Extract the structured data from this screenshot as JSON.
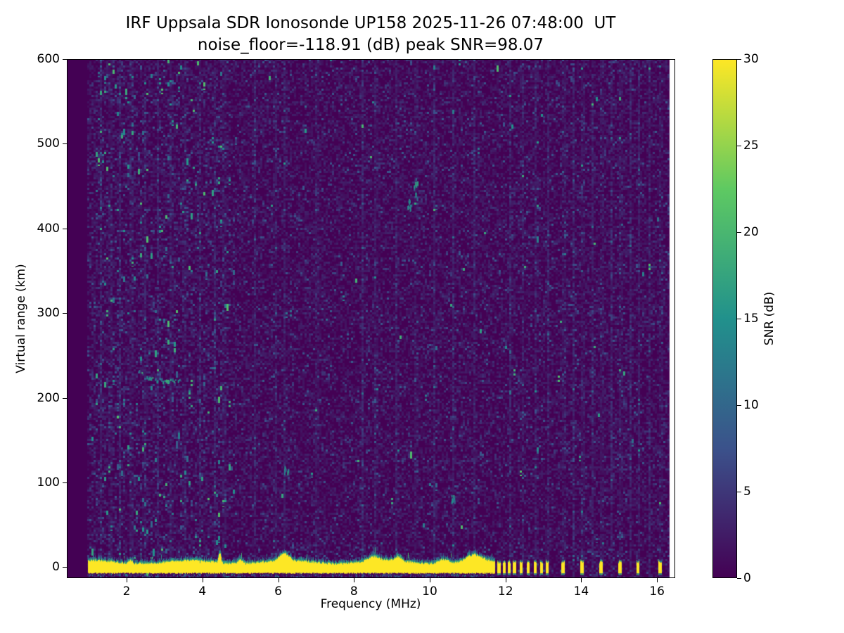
{
  "figure": {
    "title": "IRF Uppsala SDR Ionosonde UP158 2025-11-26 07:48:00  UT",
    "subtitle": "noise_floor=-118.91 (dB) peak SNR=98.07"
  },
  "chart_data": {
    "type": "heatmap",
    "title": "IRF Uppsala SDR Ionosonde UP158 2025-11-26 07:48:00  UT",
    "subtitle": "noise_floor=-118.91 (dB) peak SNR=98.07",
    "xlabel": "Frequency (MHz)",
    "ylabel": "Virtual range (km)",
    "xlim": [
      0.42,
      16.48
    ],
    "ylim": [
      -13,
      600
    ],
    "xticks": [
      2,
      4,
      6,
      8,
      10,
      12,
      14,
      16
    ],
    "yticks": [
      0,
      100,
      200,
      300,
      400,
      500,
      600
    ],
    "grid": false,
    "noise_floor_db": -118.91,
    "peak_snr_db": 98.07,
    "colorbar": {
      "label": "SNR (dB)",
      "ticks": [
        0,
        5,
        10,
        15,
        20,
        25,
        30
      ],
      "vmin": 0,
      "vmax": 30,
      "colormap": "viridis",
      "position": "right"
    },
    "colormap_stops": [
      {
        "t": 0.0,
        "color": "#440154"
      },
      {
        "t": 0.25,
        "color": "#3b528b"
      },
      {
        "t": 0.5,
        "color": "#21918c"
      },
      {
        "t": 0.75,
        "color": "#5ec962"
      },
      {
        "t": 1.0,
        "color": "#fde725"
      }
    ],
    "features": {
      "sweep_start_mhz": 0.95,
      "no_signal_above_mhz": 16.33,
      "dense_speckle_region_mhz": [
        1.05,
        4.7
      ],
      "ground_echo_band": {
        "freq_start_mhz": 0.97,
        "freq_end_mhz": 11.72,
        "range_center_km": 0,
        "top_km": 6,
        "bottom_km": -8,
        "snr_db": 30
      },
      "band_bumps": [
        {
          "f_mhz": 2.1,
          "width_mhz": 0.1,
          "height_km": 4
        },
        {
          "f_mhz": 4.45,
          "width_mhz": 0.08,
          "height_km": 12
        },
        {
          "f_mhz": 5.0,
          "width_mhz": 0.15,
          "height_km": 4
        },
        {
          "f_mhz": 6.15,
          "width_mhz": 0.3,
          "height_km": 8
        },
        {
          "f_mhz": 8.5,
          "width_mhz": 0.35,
          "height_km": 5
        },
        {
          "f_mhz": 9.15,
          "width_mhz": 0.2,
          "height_km": 5
        },
        {
          "f_mhz": 10.35,
          "width_mhz": 0.3,
          "height_km": 5
        },
        {
          "f_mhz": 11.15,
          "width_mhz": 0.45,
          "height_km": 7
        }
      ],
      "pulse_segments_mhz": [
        11.83,
        11.97,
        12.1,
        12.24,
        12.42,
        12.6,
        12.78,
        12.95,
        13.1,
        13.52,
        14.02,
        14.52,
        15.02,
        15.5,
        16.08
      ],
      "ionospheric_echo_trace": {
        "points": [
          [
            2.32,
            232
          ],
          [
            2.45,
            227
          ],
          [
            2.6,
            224
          ],
          [
            2.8,
            222
          ],
          [
            3.0,
            221
          ],
          [
            3.2,
            221
          ],
          [
            3.4,
            223
          ]
        ],
        "snr_db": 15
      },
      "echo_blobs": [
        {
          "f_mhz": 9.62,
          "range_km": 450,
          "length_km": 28
        },
        {
          "f_mhz": 9.45,
          "range_km": 430,
          "length_km": 12
        },
        {
          "f_mhz": 10.6,
          "range_km": 80,
          "length_km": 12
        },
        {
          "f_mhz": 6.2,
          "range_km": 115,
          "length_km": 10
        }
      ],
      "interference_stripes_mhz": [
        1.3,
        1.55,
        1.8,
        2.1,
        2.45,
        2.8,
        3.15,
        3.5,
        3.9,
        4.3,
        4.55,
        5.35,
        5.9,
        6.15,
        7.0,
        8.2,
        8.55,
        9.1,
        9.62,
        10.1,
        10.6,
        11.15,
        12.1,
        12.42,
        12.78,
        13.1,
        13.52,
        13.77,
        14.02,
        14.28,
        14.52,
        14.77,
        15.02,
        15.27,
        15.5,
        15.77,
        16.08
      ]
    }
  }
}
